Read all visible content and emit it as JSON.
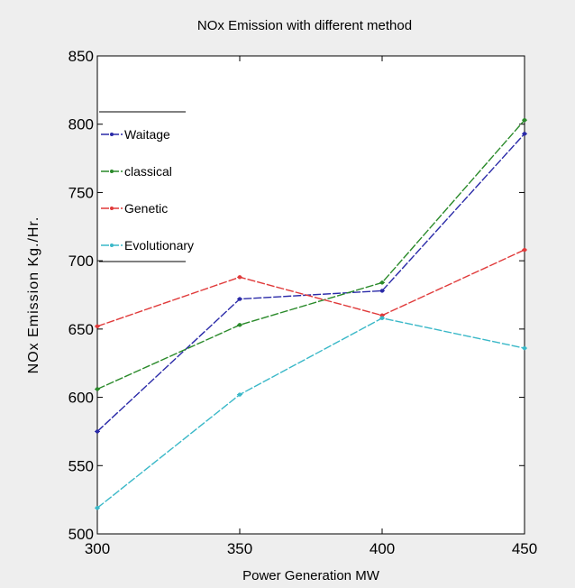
{
  "chart_data": {
    "type": "line",
    "title": "NOx Emission with different method",
    "xlabel": "Power Generation MW",
    "ylabel": "NOx Emission Kg./Hr.",
    "x": [
      300,
      350,
      400,
      450
    ],
    "xticks": [
      "300",
      "350",
      "400",
      "450"
    ],
    "yticks": [
      "500",
      "550",
      "600",
      "650",
      "700",
      "750",
      "800",
      "850"
    ],
    "xlim": [
      300,
      450
    ],
    "ylim": [
      500,
      850
    ],
    "grid": false,
    "legend_position": "top-left",
    "series": [
      {
        "name": "Waitage",
        "color": "#2a2aa8",
        "values": [
          575,
          672,
          678,
          793
        ]
      },
      {
        "name": "classical",
        "color": "#2a8a2a",
        "values": [
          606,
          653,
          684,
          803
        ]
      },
      {
        "name": "Genetic",
        "color": "#e03a3a",
        "values": [
          652,
          688,
          660,
          708
        ]
      },
      {
        "name": "Evolutionary",
        "color": "#3ab8c8",
        "values": [
          519,
          602,
          658,
          636
        ]
      }
    ]
  }
}
